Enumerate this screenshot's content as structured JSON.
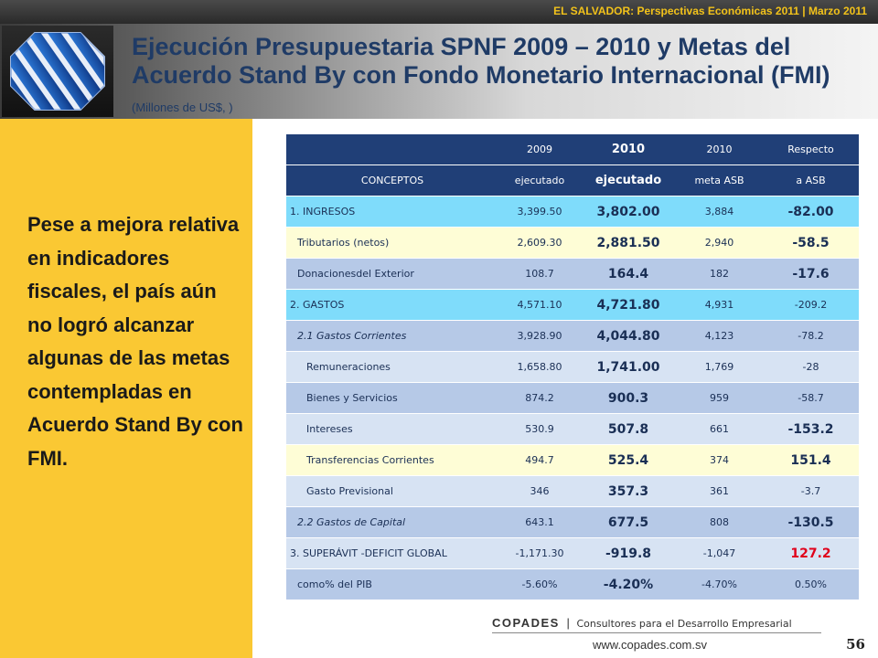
{
  "top_banner": "EL SALVADOR: Perspectivas Económicas 2011 | Marzo 2011",
  "title": "Ejecución Presupuestaria SPNF 2009 – 2010 y Metas del Acuerdo Stand By con Fondo Monetario Internacional (FMI)",
  "subtitle": "(Millones de US$, )",
  "sidebar_text": "Pese a mejora relativa en indicadores fiscales, el país aún no logró alcanzar algunas de las metas contempladas en Acuerdo Stand By con FMI.",
  "table": {
    "header_row1": [
      "",
      "2009",
      "2010",
      "2010",
      "Respecto"
    ],
    "header_row2": [
      "CONCEPTOS",
      "ejecutado",
      "ejecutado",
      "meta ASB",
      "a ASB"
    ],
    "rows": [
      {
        "concept": "1. INGRESOS",
        "v2009": "3,399.50",
        "v2010": "3,802.00",
        "meta": "3,884",
        "resp": "-82.00",
        "color": "cyan",
        "indent": 0,
        "italic": false,
        "resp_big": true,
        "resp_red": false
      },
      {
        "concept": "Tributarios (netos)",
        "v2009": "2,609.30",
        "v2010": "2,881.50",
        "meta": "2,940",
        "resp": "-58.5",
        "color": "cream",
        "indent": 1,
        "italic": false,
        "resp_big": true,
        "resp_red": false
      },
      {
        "concept": "Donacionesdel Exterior",
        "v2009": "108.7",
        "v2010": "164.4",
        "meta": "182",
        "resp": "-17.6",
        "color": "blue",
        "indent": 1,
        "italic": false,
        "resp_big": true,
        "resp_red": false
      },
      {
        "concept": "2. GASTOS",
        "v2009": "4,571.10",
        "v2010": "4,721.80",
        "meta": "4,931",
        "resp": "-209.2",
        "color": "cyan",
        "indent": 0,
        "italic": false,
        "resp_big": false,
        "resp_red": false
      },
      {
        "concept": "2.1 Gastos Corrientes",
        "v2009": "3,928.90",
        "v2010": "4,044.80",
        "meta": "4,123",
        "resp": "-78.2",
        "color": "blue",
        "indent": 1,
        "italic": true,
        "resp_big": false,
        "resp_red": false
      },
      {
        "concept": "Remuneraciones",
        "v2009": "1,658.80",
        "v2010": "1,741.00",
        "meta": "1,769",
        "resp": "-28",
        "color": "lblue",
        "indent": 2,
        "italic": false,
        "resp_big": false,
        "resp_red": false
      },
      {
        "concept": "Bienes y Servicios",
        "v2009": "874.2",
        "v2010": "900.3",
        "meta": "959",
        "resp": "-58.7",
        "color": "blue",
        "indent": 2,
        "italic": false,
        "resp_big": false,
        "resp_red": false
      },
      {
        "concept": "Intereses",
        "v2009": "530.9",
        "v2010": "507.8",
        "meta": "661",
        "resp": "-153.2",
        "color": "lblue",
        "indent": 2,
        "italic": false,
        "resp_big": true,
        "resp_red": false
      },
      {
        "concept": "Transferencias Corrientes",
        "v2009": "494.7",
        "v2010": "525.4",
        "meta": "374",
        "resp": "151.4",
        "color": "cream",
        "indent": 2,
        "italic": false,
        "resp_big": true,
        "resp_red": false
      },
      {
        "concept": "Gasto Previsional",
        "v2009": "346",
        "v2010": "357.3",
        "meta": "361",
        "resp": "-3.7",
        "color": "lblue",
        "indent": 2,
        "italic": false,
        "resp_big": false,
        "resp_red": false
      },
      {
        "concept": "2.2 Gastos de Capital",
        "v2009": "643.1",
        "v2010": "677.5",
        "meta": "808",
        "resp": "-130.5",
        "color": "blue",
        "indent": 1,
        "italic": true,
        "resp_big": true,
        "resp_red": false
      },
      {
        "concept": "3. SUPERÁVIT -DEFICIT GLOBAL",
        "v2009": "-1,171.30",
        "v2010": "-919.8",
        "meta": "-1,047",
        "resp": "127.2",
        "color": "lblue",
        "indent": 0,
        "italic": false,
        "resp_big": true,
        "resp_red": true
      },
      {
        "concept": "como% del PIB",
        "v2009": "-5.60%",
        "v2010": "-4.20%",
        "meta": "-4.70%",
        "resp": "0.50%",
        "color": "blue",
        "indent": 1,
        "italic": false,
        "resp_big": false,
        "resp_red": false
      }
    ]
  },
  "footer": {
    "company": "COPADES",
    "separator": "|",
    "description": "Consultores para el Desarrollo Empresarial",
    "url": "www.copades.com.sv",
    "page": "56"
  },
  "colors": {
    "header_navy": "#203f77",
    "sidebar_yellow": "#fac833",
    "banner_gold": "#f2c21a",
    "title_blue": "#1f3b66",
    "positive_red": "#e0001b"
  },
  "icons": {
    "logo": "globe-logo-icon"
  }
}
